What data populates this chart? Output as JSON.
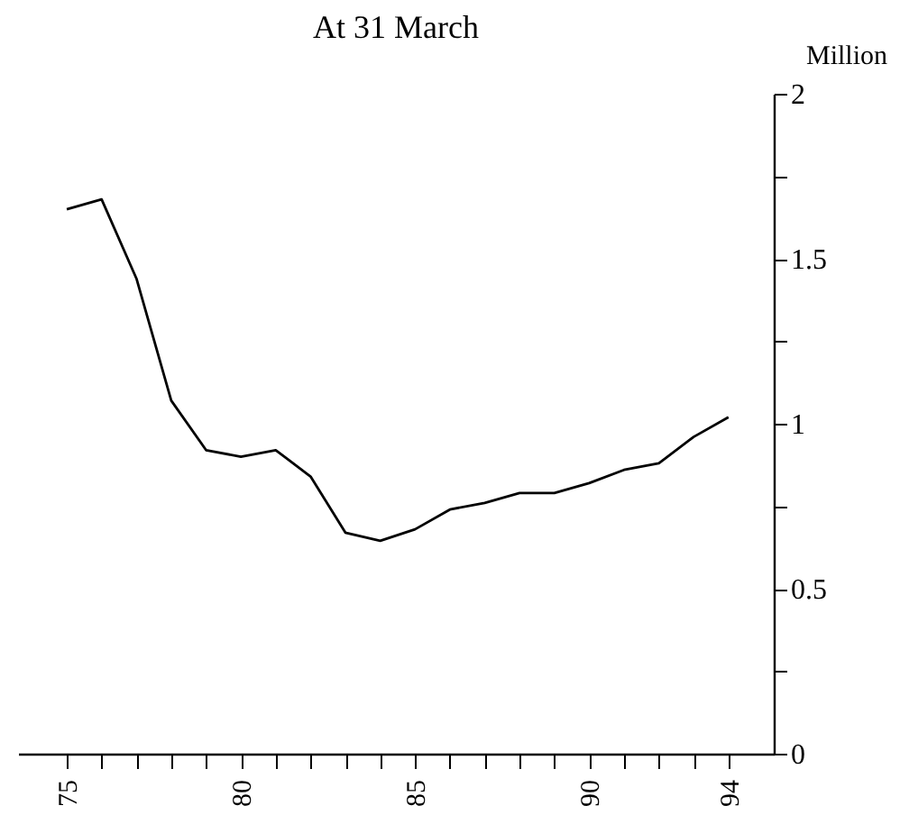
{
  "chart_data": {
    "type": "line",
    "title": "At 31 March",
    "ylabel": "Million",
    "x": [
      75,
      76,
      77,
      78,
      79,
      80,
      81,
      82,
      83,
      84,
      85,
      86,
      87,
      88,
      89,
      90,
      91,
      92,
      93,
      94
    ],
    "series": [
      {
        "color": "#000000",
        "values": [
          1.65,
          1.68,
          1.44,
          1.07,
          0.92,
          0.9,
          0.92,
          0.84,
          0.67,
          0.645,
          0.68,
          0.74,
          0.76,
          0.79,
          0.79,
          0.82,
          0.86,
          0.88,
          0.96,
          1.02
        ]
      }
    ],
    "xlim": [
      73.6,
      95.3
    ],
    "xticks": [
      75,
      {
        "value": 76,
        "label": null
      },
      {
        "value": 77,
        "label": null
      },
      {
        "value": 78,
        "label": null
      },
      {
        "value": 79,
        "label": null
      },
      80,
      {
        "value": 81,
        "label": null
      },
      {
        "value": 82,
        "label": null
      },
      {
        "value": 83,
        "label": null
      },
      {
        "value": 84,
        "label": null
      },
      85,
      {
        "value": 86,
        "label": null
      },
      {
        "value": 87,
        "label": null
      },
      {
        "value": 88,
        "label": null
      },
      {
        "value": 89,
        "label": null
      },
      90,
      {
        "value": 91,
        "label": null
      },
      {
        "value": 92,
        "label": null
      },
      {
        "value": 93,
        "label": null
      },
      94
    ],
    "ylim": [
      0,
      2
    ],
    "yticks": [
      0,
      {
        "value": 0.25,
        "label": null
      },
      0.5,
      {
        "value": 0.75,
        "label": null
      },
      1,
      {
        "value": 1.25,
        "label": null
      },
      1.5,
      {
        "value": 1.75,
        "label": null
      },
      2
    ]
  }
}
